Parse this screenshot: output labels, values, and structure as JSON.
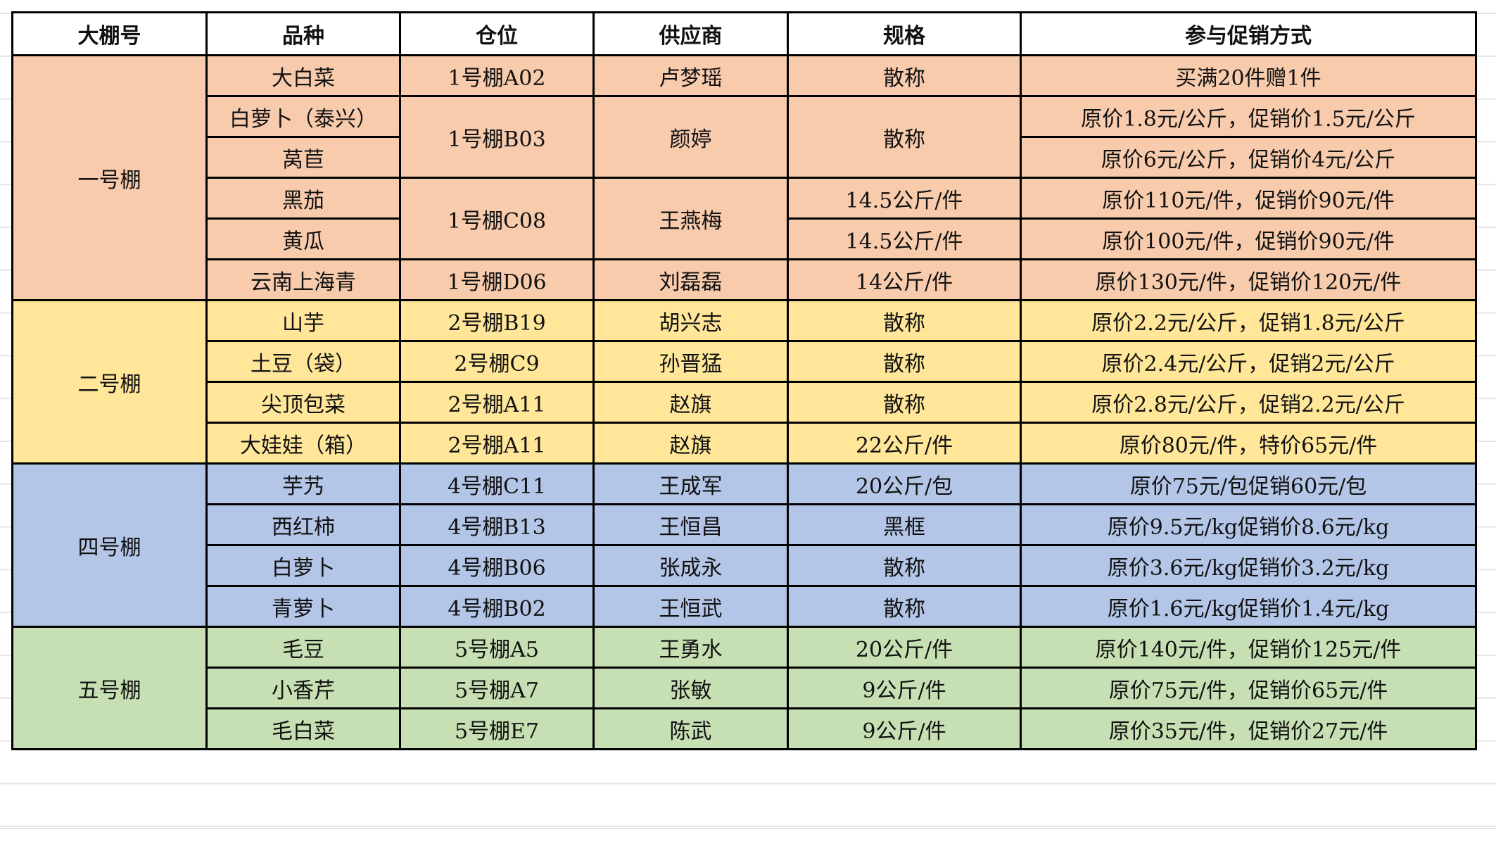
{
  "headers": [
    "大棚号",
    "品种",
    "仓位",
    "供应商",
    "规格",
    "参与促销方式"
  ],
  "groups": [
    {
      "name": "一号棚",
      "color": "#F8CBAD",
      "rows": [
        [
          "大白菜",
          "1号棚A02",
          "卢梦瑶",
          "散称",
          "买满20件赠1件"
        ],
        [
          "白萝卜（泰兴）",
          "1号棚B03",
          "颜婷",
          "散称",
          "原价1.8元/公斤，促销价1.5元/公斤"
        ],
        [
          "莴苣",
          null,
          null,
          null,
          "原价6元/公斤，促销价4元/公斤"
        ],
        [
          "黑茄",
          "1号棚C08",
          "王燕梅",
          "14.5公斤/件",
          "原价110元/件，促销价90元/件"
        ],
        [
          "黄瓜",
          null,
          null,
          "14.5公斤/件",
          "原价100元/件，促销价90元/件"
        ],
        [
          "云南上海青",
          "1号棚D06",
          "刘磊磊",
          "14公斤/件",
          "原价130元/件，促销价120元/件"
        ]
      ]
    },
    {
      "name": "二号棚",
      "color": "#FFE699",
      "rows": [
        [
          "山芋",
          "2号棚B19",
          "胡兴志",
          "散称",
          "原价2.2元/公斤，促销1.8元/公斤"
        ],
        [
          "土豆（袋）",
          "2号棚C9",
          "孙晋猛",
          "散称",
          "原价2.4元/公斤，促销2元/公斤"
        ],
        [
          "尖顶包菜",
          "2号棚A11",
          "赵旗",
          "散称",
          "原价2.8元/公斤，促销2.2元/公斤"
        ],
        [
          "大娃娃（箱）",
          "2号棚A11",
          "赵旗",
          "22公斤/件",
          "原价80元/件，特价65元/件"
        ]
      ]
    },
    {
      "name": "四号棚",
      "color": "#B4C6E7",
      "rows": [
        [
          "芋艿",
          "4号棚C11",
          "王成军",
          "20公斤/包",
          "原价75元/包促销60元/包"
        ],
        [
          "西红柿",
          "4号棚B13",
          "王恒昌",
          "黑框",
          "原价9.5元/kg促销价8.6元/kg"
        ],
        [
          "白萝卜",
          "4号棚B06",
          "张成永",
          "散称",
          "原价3.6元/kg促销价3.2元/kg"
        ],
        [
          "青萝卜",
          "4号棚B02",
          "王恒武",
          "散称",
          "原价1.6元/kg促销价1.4元/kg"
        ]
      ]
    },
    {
      "name": "五号棚",
      "color": "#C6E0B4",
      "rows": [
        [
          "毛豆",
          "5号棚A5",
          "王勇水",
          "20公斤/件",
          "原价140元/件，促销价125元/件"
        ],
        [
          "小香芹",
          "5号棚A7",
          "张敏",
          "9公斤/件",
          "原价75元/件，促销价65元/件"
        ],
        [
          "毛白菜",
          "5号棚E7",
          "陈武",
          "9公斤/件",
          "原价35元/件，促销价27元/件"
        ]
      ]
    }
  ]
}
